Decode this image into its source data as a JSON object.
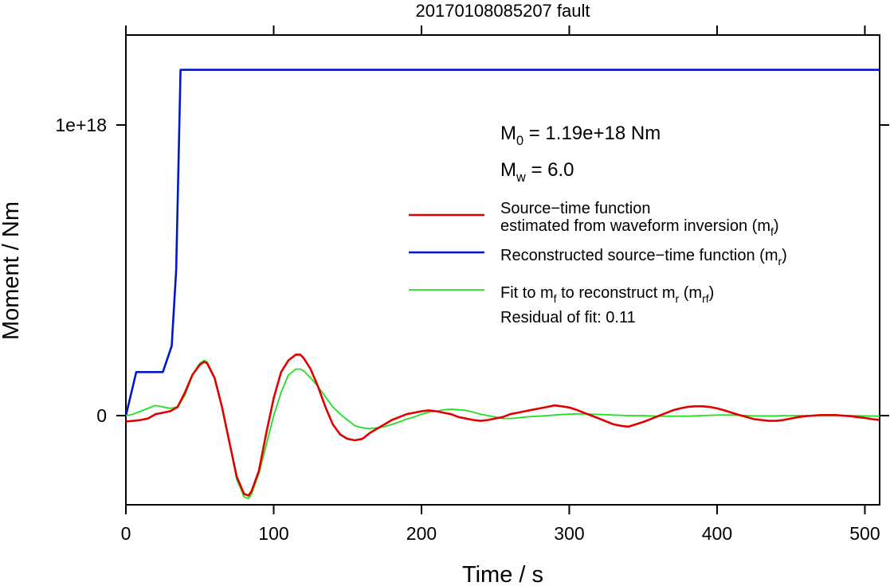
{
  "chart_data": {
    "type": "line",
    "title": "20170108085207 fault",
    "xlabel": "Time / s",
    "ylabel": "Moment / Nm",
    "xlim": [
      0,
      510
    ],
    "ylim": [
      -3.1e+17,
      1.3e+18
    ],
    "x_ticks": [
      0,
      100,
      200,
      300,
      400,
      500
    ],
    "x_tick_labels": [
      "0",
      "100",
      "200",
      "300",
      "400",
      "500"
    ],
    "y_ticks": [
      0,
      1e+18
    ],
    "y_tick_labels": [
      "0",
      "1e+18"
    ],
    "grid": false,
    "legend_position": "right",
    "annotations": {
      "m0": {
        "base": "M",
        "sub": "0",
        "rest": " = 1.19e+18 Nm"
      },
      "mw": {
        "base": "M",
        "sub": "w",
        "rest": " = 6.0"
      },
      "residual": "Residual of fit: 0.11"
    },
    "series": [
      {
        "key": "red",
        "color": "#e00000",
        "stroke_width": 2.6,
        "legend_parts": [
          {
            "text": "Source−time function",
            "line": 1
          },
          {
            "text": "estimated from waveform inversion (m",
            "line": 2
          },
          {
            "text": "f",
            "line": 2,
            "sub": true
          },
          {
            "text": ")",
            "line": 2
          }
        ],
        "points": [
          [
            0,
            -0.2
          ],
          [
            5,
            -0.18
          ],
          [
            10,
            -0.15
          ],
          [
            15,
            -0.1
          ],
          [
            20,
            0.05
          ],
          [
            25,
            0.1
          ],
          [
            30,
            0.15
          ],
          [
            35,
            0.3
          ],
          [
            40,
            0.8
          ],
          [
            45,
            1.4
          ],
          [
            50,
            1.75
          ],
          [
            53,
            1.85
          ],
          [
            55,
            1.8
          ],
          [
            60,
            1.3
          ],
          [
            65,
            0.3
          ],
          [
            70,
            -0.9
          ],
          [
            75,
            -2.1
          ],
          [
            80,
            -2.7
          ],
          [
            83,
            -2.75
          ],
          [
            85,
            -2.6
          ],
          [
            90,
            -1.9
          ],
          [
            95,
            -0.6
          ],
          [
            100,
            0.6
          ],
          [
            105,
            1.5
          ],
          [
            110,
            1.9
          ],
          [
            115,
            2.1
          ],
          [
            118,
            2.1
          ],
          [
            120,
            2.0
          ],
          [
            125,
            1.6
          ],
          [
            130,
            1.0
          ],
          [
            135,
            0.3
          ],
          [
            140,
            -0.3
          ],
          [
            145,
            -0.65
          ],
          [
            150,
            -0.8
          ],
          [
            155,
            -0.85
          ],
          [
            160,
            -0.8
          ],
          [
            165,
            -0.6
          ],
          [
            170,
            -0.45
          ],
          [
            175,
            -0.3
          ],
          [
            180,
            -0.15
          ],
          [
            185,
            -0.05
          ],
          [
            190,
            0.05
          ],
          [
            195,
            0.1
          ],
          [
            200,
            0.15
          ],
          [
            205,
            0.18
          ],
          [
            210,
            0.15
          ],
          [
            215,
            0.1
          ],
          [
            220,
            0.05
          ],
          [
            225,
            -0.05
          ],
          [
            230,
            -0.1
          ],
          [
            235,
            -0.15
          ],
          [
            240,
            -0.18
          ],
          [
            245,
            -0.15
          ],
          [
            250,
            -0.1
          ],
          [
            255,
            -0.05
          ],
          [
            260,
            0.05
          ],
          [
            265,
            0.1
          ],
          [
            270,
            0.15
          ],
          [
            275,
            0.2
          ],
          [
            280,
            0.25
          ],
          [
            285,
            0.3
          ],
          [
            290,
            0.35
          ],
          [
            295,
            0.32
          ],
          [
            300,
            0.28
          ],
          [
            305,
            0.2
          ],
          [
            310,
            0.1
          ],
          [
            315,
            0.0
          ],
          [
            320,
            -0.1
          ],
          [
            325,
            -0.2
          ],
          [
            330,
            -0.3
          ],
          [
            335,
            -0.35
          ],
          [
            340,
            -0.38
          ],
          [
            345,
            -0.3
          ],
          [
            350,
            -0.22
          ],
          [
            355,
            -0.12
          ],
          [
            360,
            -0.02
          ],
          [
            365,
            0.08
          ],
          [
            370,
            0.18
          ],
          [
            375,
            0.25
          ],
          [
            380,
            0.3
          ],
          [
            385,
            0.32
          ],
          [
            390,
            0.32
          ],
          [
            395,
            0.3
          ],
          [
            400,
            0.25
          ],
          [
            405,
            0.18
          ],
          [
            410,
            0.1
          ],
          [
            415,
            0.02
          ],
          [
            420,
            -0.05
          ],
          [
            425,
            -0.12
          ],
          [
            430,
            -0.15
          ],
          [
            435,
            -0.18
          ],
          [
            440,
            -0.18
          ],
          [
            445,
            -0.15
          ],
          [
            450,
            -0.1
          ],
          [
            455,
            -0.05
          ],
          [
            460,
            -0.02
          ],
          [
            465,
            0.0
          ],
          [
            470,
            0.02
          ],
          [
            475,
            0.02
          ],
          [
            480,
            0.02
          ],
          [
            485,
            0.0
          ],
          [
            490,
            -0.02
          ],
          [
            495,
            -0.05
          ],
          [
            500,
            -0.08
          ],
          [
            505,
            -0.12
          ],
          [
            510,
            -0.15
          ]
        ]
      },
      {
        "key": "blue",
        "color": "#0018c8",
        "stroke_width": 2.6,
        "legend_parts": [
          {
            "text": "Reconstructed source−time function (m",
            "line": 1
          },
          {
            "text": "r",
            "line": 1,
            "sub": true
          },
          {
            "text": ")",
            "line": 1
          }
        ],
        "points": [
          [
            0,
            0
          ],
          [
            7,
            1.5
          ],
          [
            25,
            1.5
          ],
          [
            31,
            2.4
          ],
          [
            34,
            5
          ],
          [
            37,
            11.9
          ],
          [
            510,
            11.9
          ]
        ]
      },
      {
        "key": "green",
        "color": "#20e020",
        "stroke_width": 1.8,
        "legend_parts": [
          {
            "text": "Fit to m",
            "line": 1
          },
          {
            "text": "f",
            "line": 1,
            "sub": true
          },
          {
            "text": " to reconstruct m",
            "line": 1
          },
          {
            "text": "r",
            "line": 1,
            "sub": true
          },
          {
            "text": " (m",
            "line": 1
          },
          {
            "text": "rf",
            "line": 1,
            "sub": true
          },
          {
            "text": ")",
            "line": 1
          }
        ],
        "points": [
          [
            0,
            0.0
          ],
          [
            5,
            0.05
          ],
          [
            10,
            0.15
          ],
          [
            15,
            0.25
          ],
          [
            20,
            0.35
          ],
          [
            25,
            0.3
          ],
          [
            30,
            0.25
          ],
          [
            35,
            0.3
          ],
          [
            40,
            0.7
          ],
          [
            45,
            1.4
          ],
          [
            50,
            1.8
          ],
          [
            53,
            1.9
          ],
          [
            55,
            1.85
          ],
          [
            60,
            1.3
          ],
          [
            65,
            0.3
          ],
          [
            70,
            -0.9
          ],
          [
            75,
            -2.2
          ],
          [
            80,
            -2.8
          ],
          [
            83,
            -2.85
          ],
          [
            85,
            -2.7
          ],
          [
            90,
            -2.0
          ],
          [
            95,
            -1.0
          ],
          [
            100,
            0.0
          ],
          [
            105,
            0.8
          ],
          [
            110,
            1.4
          ],
          [
            115,
            1.6
          ],
          [
            118,
            1.6
          ],
          [
            120,
            1.55
          ],
          [
            125,
            1.3
          ],
          [
            130,
            1.0
          ],
          [
            135,
            0.65
          ],
          [
            140,
            0.3
          ],
          [
            145,
            0.05
          ],
          [
            150,
            -0.15
          ],
          [
            155,
            -0.35
          ],
          [
            160,
            -0.42
          ],
          [
            165,
            -0.45
          ],
          [
            170,
            -0.42
          ],
          [
            175,
            -0.38
          ],
          [
            180,
            -0.3
          ],
          [
            185,
            -0.22
          ],
          [
            190,
            -0.12
          ],
          [
            195,
            -0.05
          ],
          [
            200,
            0.05
          ],
          [
            205,
            0.12
          ],
          [
            210,
            0.15
          ],
          [
            215,
            0.2
          ],
          [
            220,
            0.22
          ],
          [
            225,
            0.2
          ],
          [
            230,
            0.18
          ],
          [
            235,
            0.12
          ],
          [
            240,
            0.05
          ],
          [
            245,
            0.0
          ],
          [
            250,
            -0.05
          ],
          [
            255,
            -0.1
          ],
          [
            260,
            -0.1
          ],
          [
            265,
            -0.08
          ],
          [
            270,
            -0.05
          ],
          [
            275,
            -0.03
          ],
          [
            280,
            -0.02
          ],
          [
            285,
            0.0
          ],
          [
            290,
            0.02
          ],
          [
            295,
            0.04
          ],
          [
            300,
            0.05
          ],
          [
            305,
            0.06
          ],
          [
            310,
            0.06
          ],
          [
            315,
            0.05
          ],
          [
            320,
            0.04
          ],
          [
            325,
            0.03
          ],
          [
            330,
            0.02
          ],
          [
            335,
            0.01
          ],
          [
            340,
            0.0
          ],
          [
            345,
            0.0
          ],
          [
            350,
            0.0
          ],
          [
            355,
            -0.01
          ],
          [
            360,
            -0.02
          ],
          [
            365,
            -0.02
          ],
          [
            370,
            -0.02
          ],
          [
            375,
            -0.02
          ],
          [
            380,
            -0.02
          ],
          [
            385,
            -0.01
          ],
          [
            390,
            0.0
          ],
          [
            395,
            0.01
          ],
          [
            400,
            0.02
          ],
          [
            405,
            0.02
          ],
          [
            410,
            0.02
          ],
          [
            415,
            0.01
          ],
          [
            420,
            0.0
          ],
          [
            425,
            -0.01
          ],
          [
            430,
            -0.01
          ],
          [
            435,
            -0.01
          ],
          [
            440,
            -0.01
          ],
          [
            445,
            0.0
          ],
          [
            450,
            0.0
          ],
          [
            460,
            0.0
          ],
          [
            470,
            0.0
          ],
          [
            480,
            0.0
          ],
          [
            490,
            0.0
          ],
          [
            500,
            -0.01
          ],
          [
            510,
            -0.02
          ]
        ]
      }
    ]
  }
}
